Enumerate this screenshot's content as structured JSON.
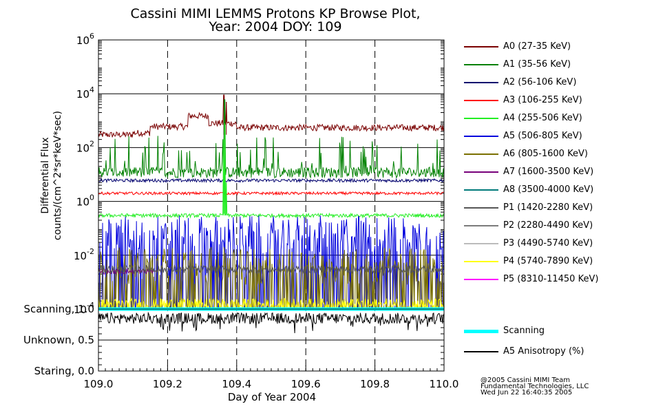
{
  "title_line1": "Cassini MIMI LEMMS Protons KP Browse Plot,",
  "title_line2": "Year: 2004 DOY: 109",
  "chart_data": {
    "type": "line",
    "title": "Cassini MIMI LEMMS Protons KP Browse Plot, Year: 2004 DOY: 109",
    "xlabel": "Day of Year 2004",
    "ylabel_line1": "Differential Flux",
    "ylabel_line2": "counts/(cm^2*sr*keV*sec)",
    "xlim": [
      109.0,
      110.0
    ],
    "x_ticks": [
      109.0,
      109.2,
      109.4,
      109.6,
      109.8,
      110.0
    ],
    "x_tick_labels": [
      "109.0",
      "109.2",
      "109.4",
      "109.6",
      "109.8",
      "110.0"
    ],
    "y_scale": "log",
    "ylim": [
      0.0001,
      1000000
    ],
    "y_ticks": [
      {
        "value": 1000000,
        "base": "10",
        "exp": "6"
      },
      {
        "value": 10000,
        "base": "10",
        "exp": "4"
      },
      {
        "value": 100,
        "base": "10",
        "exp": "2"
      },
      {
        "value": 1,
        "base": "10",
        "exp": "0"
      },
      {
        "value": 0.01,
        "base": "10",
        "exp": "-2"
      },
      {
        "value": 0.0001,
        "base": "10",
        "exp": "-4"
      }
    ],
    "state_panel": {
      "labels": [
        "Scanning, 1.0",
        "Unknown, 0.5",
        "Staring, 0.0"
      ],
      "values": [
        1.0,
        0.5,
        0.0
      ],
      "scanning_level": 1.0,
      "anisotropy_mean": 0.85,
      "anisotropy_spread": 0.09
    },
    "series": [
      {
        "name": "A0 (27-35 KeV)",
        "color": "#7a0000",
        "style": "base",
        "base": 300,
        "jitter": 0.12,
        "segments": [
          [
            109.0,
            109.1,
            300
          ],
          [
            109.1,
            109.15,
            350
          ],
          [
            109.15,
            109.26,
            600
          ],
          [
            109.26,
            109.32,
            1500
          ],
          [
            109.32,
            109.4,
            800
          ],
          [
            109.4,
            110.0,
            550
          ]
        ],
        "spikes": [
          {
            "x": 109.363,
            "y": 9000
          },
          {
            "x": 109.37,
            "y": 5000
          }
        ]
      },
      {
        "name": "A1 (35-56 KeV)",
        "color": "#008000",
        "style": "spiky",
        "base": 12,
        "spike_prob": 0.12,
        "spike_max": 300,
        "spikes": [
          {
            "x": 109.365,
            "y": 6000
          }
        ]
      },
      {
        "name": "A2 (56-106 KeV)",
        "color": "#00006e",
        "style": "base",
        "base": 6,
        "jitter": 0.06
      },
      {
        "name": "A3 (106-255 KeV)",
        "color": "#ff0000",
        "style": "base",
        "base": 2,
        "jitter": 0.05
      },
      {
        "name": "A4 (255-506 KeV)",
        "color": "#22ee22",
        "style": "base",
        "base": 0.3,
        "jitter": 0.07,
        "spikes": [
          {
            "x": 109.362,
            "y": 200
          },
          {
            "x": 109.366,
            "y": 800
          },
          {
            "x": 109.37,
            "y": 5
          }
        ]
      },
      {
        "name": "A5 (506-805 KeV)",
        "color": "#0000dd",
        "style": "noisy",
        "base": 0.06,
        "low": 0.0001,
        "drop_prob": 0.45,
        "start": 109.0
      },
      {
        "name": "A6 (805-1600 KeV)",
        "color": "#7a7000",
        "style": "noisy",
        "base": 0.004,
        "low": 0.0001,
        "drop_prob": 0.4,
        "start": 109.0
      },
      {
        "name": "A7 (1600-3500 KeV)",
        "color": "#77007a",
        "style": "base",
        "base": 0.0025,
        "jitter": 0.1,
        "start": 109.0,
        "end": 109.16
      },
      {
        "name": "A8 (3500-4000 KeV)",
        "color": "#007a7a",
        "style": "none"
      },
      {
        "name": "P1 (1420-2280 KeV)",
        "color": "#555555",
        "style": "base",
        "base": 0.003,
        "jitter": 0.15
      },
      {
        "name": "P2 (2280-4490 KeV)",
        "color": "#7a7a7a",
        "style": "none"
      },
      {
        "name": "P3 (4490-5740 KeV)",
        "color": "#bbbbbb",
        "style": "none"
      },
      {
        "name": "P4 (5740-7890 KeV)",
        "color": "#ffff00",
        "style": "base",
        "base": 0.00014,
        "jitter": 0.25
      },
      {
        "name": "P5 (8310-11450 KeV)",
        "color": "#ff00ff",
        "style": "none"
      }
    ],
    "extra_legend": [
      {
        "name": "Scanning",
        "color": "#00ffff",
        "thick": true
      },
      {
        "name": "A5 Anisotropy (%)",
        "color": "#000000",
        "thick": false
      }
    ]
  },
  "credit_line1": "@2005 Cassini MIMI Team",
  "credit_line2": "Fundamental Technologies, LLC",
  "credit_line3": "Wed Jun 22 16:40:35 2005"
}
